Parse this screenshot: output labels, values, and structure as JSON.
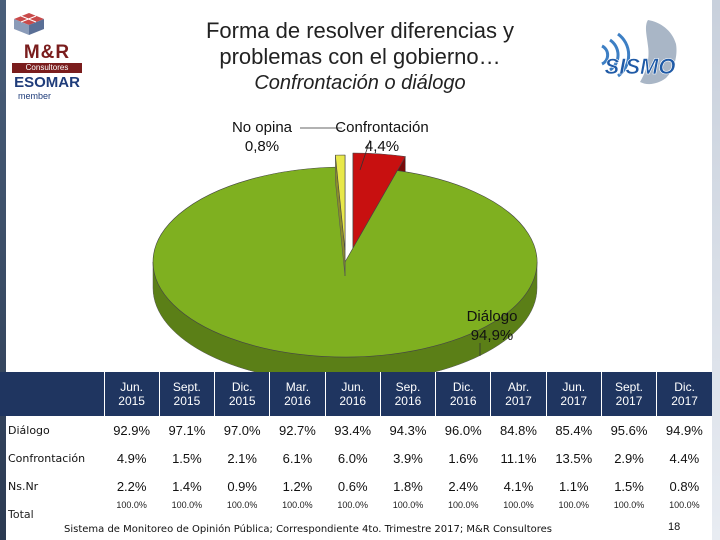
{
  "header": {
    "title_line1": "Forma de resolver diferencias y",
    "title_line2": "problemas con el gobierno…",
    "subtitle": "Confrontación o diálogo"
  },
  "logos": {
    "mr": {
      "brand": "M&R",
      "tagline": "Consultores",
      "org": "ESOMAR",
      "member": "member"
    },
    "sismo": {
      "brand": "SISMO"
    }
  },
  "chart_data": {
    "type": "pie",
    "slices": [
      {
        "label": "Diálogo",
        "value": 94.9,
        "display": "94,9%",
        "color": "#7fb020"
      },
      {
        "label": "Confrontación",
        "value": 4.4,
        "display": "4,4%",
        "color": "#c81010"
      },
      {
        "label": "No opina",
        "value": 0.8,
        "display": "0,8%",
        "color": "#e8e84a"
      }
    ],
    "three_d": true
  },
  "table": {
    "columns": [
      {
        "line1": "Jun.",
        "line2": "2015"
      },
      {
        "line1": "Sept.",
        "line2": "2015"
      },
      {
        "line1": "Dic.",
        "line2": "2015"
      },
      {
        "line1": "Mar.",
        "line2": "2016"
      },
      {
        "line1": "Jun.",
        "line2": "2016"
      },
      {
        "line1": "Sep.",
        "line2": "2016"
      },
      {
        "line1": "Dic.",
        "line2": "2016"
      },
      {
        "line1": "Abr.",
        "line2": "2017"
      },
      {
        "line1": "Jun.",
        "line2": "2017"
      },
      {
        "line1": "Sept.",
        "line2": "2017"
      },
      {
        "line1": "Dic.",
        "line2": "2017"
      }
    ],
    "rows": [
      {
        "label": "Diálogo",
        "values": [
          "92.9%",
          "97.1%",
          "97.0%",
          "92.7%",
          "93.4%",
          "94.3%",
          "96.0%",
          "84.8%",
          "85.4%",
          "95.6%",
          "94.9%"
        ]
      },
      {
        "label": "Confrontación",
        "values": [
          "4.9%",
          "1.5%",
          "2.1%",
          "6.1%",
          "6.0%",
          "3.9%",
          "1.6%",
          "11.1%",
          "13.5%",
          "2.9%",
          "4.4%"
        ]
      },
      {
        "label": "Ns.Nr",
        "values": [
          "2.2%",
          "1.4%",
          "0.9%",
          "1.2%",
          "0.6%",
          "1.8%",
          "2.4%",
          "4.1%",
          "1.1%",
          "1.5%",
          "0.8%"
        ]
      },
      {
        "label": "Total",
        "values": [
          "100.0%",
          "100.0%",
          "100.0%",
          "100.0%",
          "100.0%",
          "100.0%",
          "100.0%",
          "100.0%",
          "100.0%",
          "100.0%",
          "100.0%"
        ]
      }
    ]
  },
  "footer": {
    "source": "Sistema de Monitoreo de Opinión Pública; Correspondiente 4to. Trimestre 2017; M&R Consultores",
    "page": "18"
  }
}
